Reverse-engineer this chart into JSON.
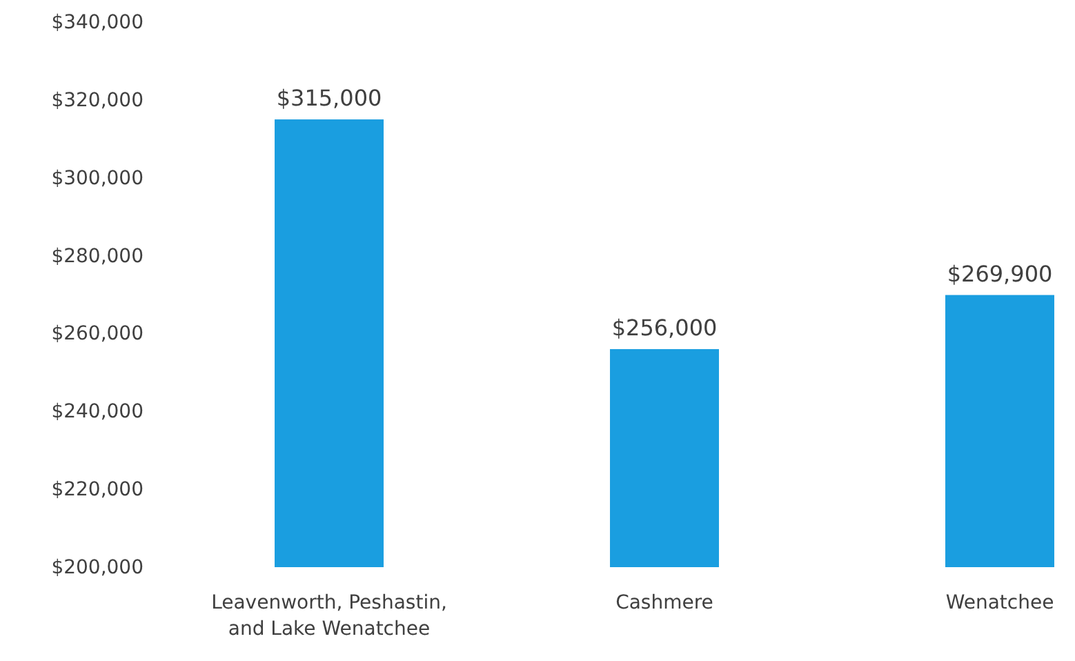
{
  "chart_data": {
    "type": "bar",
    "categories": [
      "Leavenworth, Peshastin, and Lake Wenatchee",
      "Cashmere",
      "Wenatchee"
    ],
    "values": [
      315000,
      256000,
      269900
    ],
    "value_labels": [
      "$315,000",
      "$256,000",
      "$269,900"
    ],
    "color": "#1a9ee0",
    "ylim": [
      200000,
      340000
    ],
    "yticks": [
      {
        "value": 200000,
        "label": "$200,000"
      },
      {
        "value": 220000,
        "label": "$220,000"
      },
      {
        "value": 240000,
        "label": "$240,000"
      },
      {
        "value": 260000,
        "label": "$260,000"
      },
      {
        "value": 280000,
        "label": "$280,000"
      },
      {
        "value": 300000,
        "label": "$300,000"
      },
      {
        "value": 320000,
        "label": "$320,000"
      },
      {
        "value": 340000,
        "label": "$340,000"
      }
    ],
    "grid": false
  }
}
